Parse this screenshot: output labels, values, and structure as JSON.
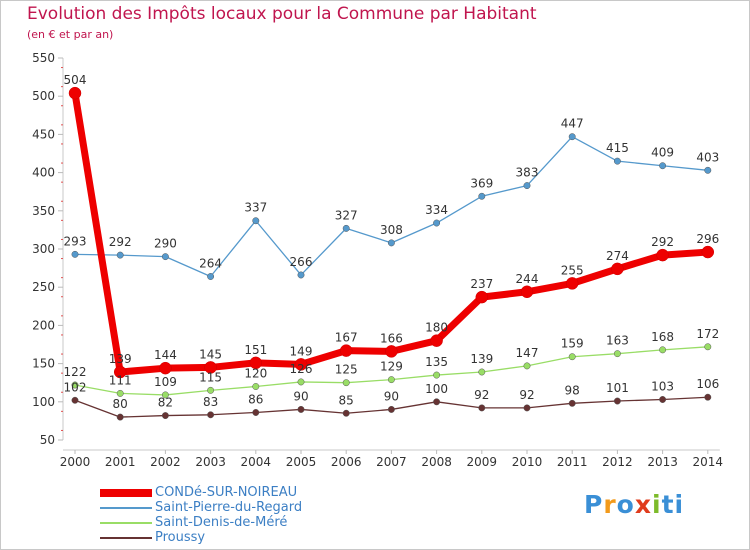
{
  "title": "Evolution des Impôts locaux pour la Commune par Habitant",
  "subtitle": "(en € et par an)",
  "brand": {
    "text": "Proxiti",
    "letters": [
      "P",
      "r",
      "o",
      "x",
      "i",
      "t",
      "i"
    ],
    "letter_colors": [
      "#3a8fd6",
      "#f29a1b",
      "#3a8fd6",
      "#e03c1d",
      "#7dbb2a",
      "#3a8fd6",
      "#3a8fd6"
    ]
  },
  "chart_data": {
    "type": "line",
    "title": "Evolution des Impôts locaux pour la Commune par Habitant",
    "subtitle": "(en € et par an)",
    "xlabel": "",
    "ylabel": "",
    "ylim": [
      50,
      550
    ],
    "yticks": [
      50,
      100,
      150,
      200,
      250,
      300,
      350,
      400,
      450,
      500,
      550
    ],
    "categories": [
      "2000",
      "2001",
      "2002",
      "2003",
      "2004",
      "2005",
      "2006",
      "2007",
      "2008",
      "2009",
      "2010",
      "2011",
      "2012",
      "2013",
      "2014"
    ],
    "grid": false,
    "legend": "bottom-left",
    "series": [
      {
        "name": "CONDé-SUR-NOIREAU",
        "color": "#ee0000",
        "values": [
          504,
          139,
          144,
          145,
          151,
          149,
          167,
          166,
          180,
          237,
          244,
          255,
          274,
          292,
          296
        ]
      },
      {
        "name": "Saint-Pierre-du-Regard",
        "color": "#5599cc",
        "values": [
          293,
          292,
          290,
          264,
          337,
          266,
          327,
          308,
          334,
          369,
          383,
          447,
          415,
          409,
          403
        ]
      },
      {
        "name": "Saint-Denis-de-Méré",
        "color": "#99dd66",
        "values": [
          122,
          111,
          109,
          115,
          120,
          126,
          125,
          129,
          135,
          139,
          147,
          159,
          163,
          168,
          172
        ]
      },
      {
        "name": "Proussy",
        "color": "#663333",
        "values": [
          102,
          80,
          82,
          83,
          86,
          90,
          85,
          90,
          100,
          92,
          92,
          98,
          101,
          103,
          106
        ]
      }
    ]
  }
}
